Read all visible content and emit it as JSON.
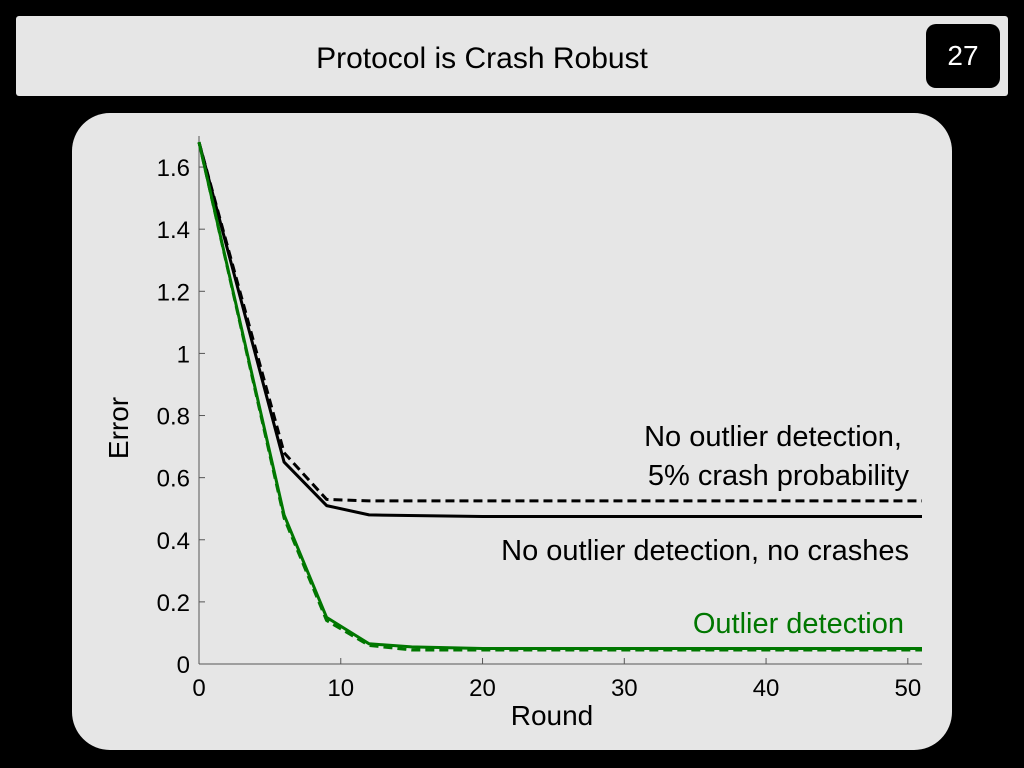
{
  "slide": {
    "title": "Protocol is Crash Robust",
    "number": "27"
  },
  "chart_data": {
    "type": "line",
    "xlabel": "Round",
    "ylabel": "Error",
    "xlim": [
      0,
      51
    ],
    "ylim": [
      0,
      1.7
    ],
    "x_ticks": [
      0,
      10,
      20,
      30,
      40,
      50
    ],
    "y_ticks": [
      0,
      0.2,
      0.4,
      0.6,
      0.8,
      1,
      1.2,
      1.4,
      1.6
    ],
    "y_tick_labels": [
      "0",
      "0.2",
      "0.4",
      "0.6",
      "0.8",
      "1",
      "1.2",
      "1.4",
      "1.6"
    ],
    "grid": false,
    "series": [
      {
        "style": "solid",
        "color": "#000000",
        "x": [
          0,
          6,
          9,
          12,
          20,
          30,
          40,
          51
        ],
        "y": [
          1.68,
          0.65,
          0.51,
          0.48,
          0.475,
          0.475,
          0.475,
          0.475
        ]
      },
      {
        "style": "dashed",
        "color": "#000000",
        "x": [
          0,
          6,
          9,
          12,
          20,
          30,
          40,
          51
        ],
        "y": [
          1.68,
          0.68,
          0.53,
          0.525,
          0.525,
          0.525,
          0.525,
          0.525
        ]
      },
      {
        "style": "solid",
        "color": "#007700",
        "x": [
          0,
          6,
          9,
          12,
          15,
          20,
          30,
          40,
          51
        ],
        "y": [
          1.68,
          0.48,
          0.15,
          0.065,
          0.055,
          0.05,
          0.05,
          0.05,
          0.05
        ]
      },
      {
        "style": "dashed",
        "color": "#007700",
        "x": [
          0,
          6,
          9,
          12,
          15,
          20,
          30,
          40,
          51
        ],
        "y": [
          1.68,
          0.47,
          0.14,
          0.06,
          0.045,
          0.045,
          0.045,
          0.045,
          0.045
        ]
      }
    ],
    "annotations": [
      {
        "text": "No outlier detection,",
        "color": "#000000"
      },
      {
        "text": "5% crash probability",
        "color": "#000000"
      },
      {
        "text": "No outlier detection, no crashes",
        "color": "#000000"
      },
      {
        "text": "Outlier detection",
        "color": "#007700"
      }
    ]
  }
}
